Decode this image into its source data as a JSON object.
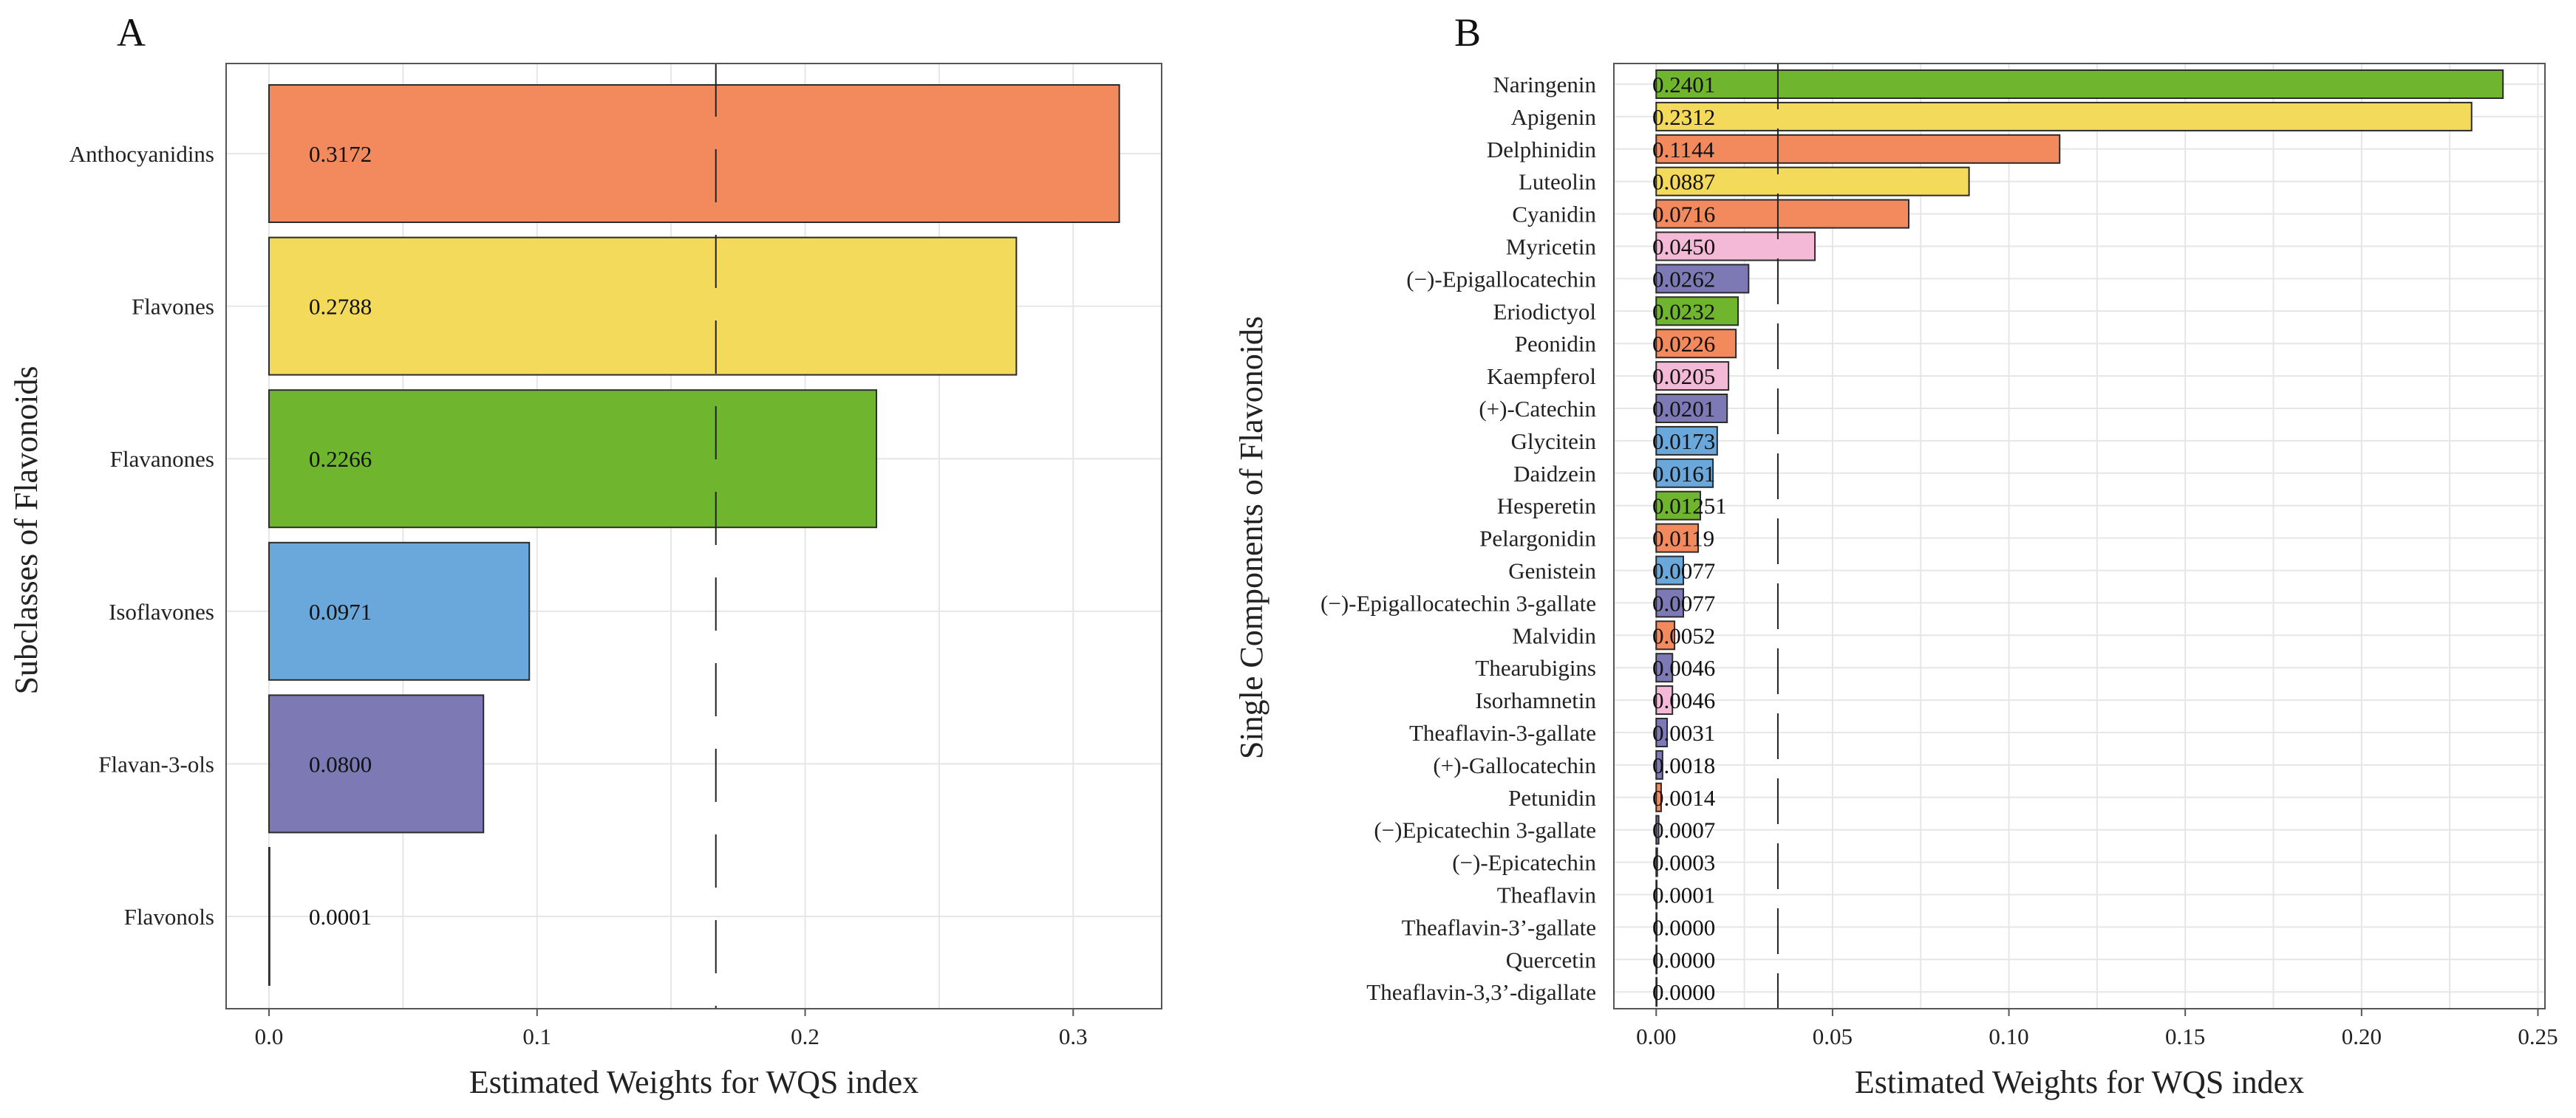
{
  "colors": {
    "Anthocyanidins": "#F28A5E",
    "Flavones": "#F3DA5B",
    "Flavanones": "#6FB52D",
    "Isoflavones": "#6AA8DB",
    "Flavan-3-ols": "#7C79B5",
    "Flavonols": "#F4B9D6"
  },
  "chart_data": [
    {
      "panel": "A",
      "type": "bar",
      "orientation": "horizontal",
      "categories": [
        "Anthocyanidins",
        "Flavones",
        "Flavanones",
        "Isoflavones",
        "Flavan-3-ols",
        "Flavonols"
      ],
      "values": [
        0.3172,
        0.2788,
        0.2266,
        0.0971,
        0.08,
        0.0001
      ],
      "labels": [
        "0.3172",
        "0.2788",
        "0.2266",
        "0.0971",
        "0.0800",
        "0.0001"
      ],
      "groups": [
        "Anthocyanidins",
        "Flavones",
        "Flavanones",
        "Isoflavones",
        "Flavan-3-ols",
        "Flavonols"
      ],
      "xlabel": "Estimated Weights for WQS index",
      "ylabel": "Subclasses of Flavonoids",
      "xlim": [
        -0.016,
        0.333
      ],
      "xticks": [
        0.0,
        0.1,
        0.2,
        0.3
      ],
      "xtick_labels": [
        "0.0",
        "0.1",
        "0.2",
        "0.3"
      ],
      "reference_line": 0.1667,
      "grid": true
    },
    {
      "panel": "B",
      "type": "bar",
      "orientation": "horizontal",
      "categories": [
        "Naringenin",
        "Apigenin",
        "Delphinidin",
        "Luteolin",
        "Cyanidin",
        "Myricetin",
        "(−)-Epigallocatechin",
        "Eriodictyol",
        "Peonidin",
        "Kaempferol",
        "(+)-Catechin",
        "Glycitein",
        "Daidzein",
        "Hesperetin",
        "Pelargonidin",
        "Genistein",
        "(−)-Epigallocatechin 3-gallate",
        "Malvidin",
        "Thearubigins",
        "Isorhamnetin",
        "Theaflavin-3-gallate",
        "(+)-Gallocatechin",
        "Petunidin",
        "(−)Epicatechin 3-gallate",
        "(−)-Epicatechin",
        "Theaflavin",
        "Theaflavin-3’-gallate",
        "Quercetin",
        "Theaflavin-3,3’-digallate"
      ],
      "values": [
        0.2401,
        0.2312,
        0.1144,
        0.0887,
        0.0716,
        0.045,
        0.0262,
        0.0232,
        0.0226,
        0.0205,
        0.0201,
        0.0173,
        0.0161,
        0.01251,
        0.0119,
        0.0077,
        0.0077,
        0.0052,
        0.0046,
        0.0046,
        0.0031,
        0.0018,
        0.0014,
        0.0007,
        0.0003,
        0.0001,
        0.0,
        0.0,
        0.0
      ],
      "labels": [
        "0.2401",
        "0.2312",
        "0.1144",
        "0.0887",
        "0.0716",
        "0.0450",
        "0.0262",
        "0.0232",
        "0.0226",
        "0.0205",
        "0.0201",
        "0.0173",
        "0.0161",
        "0.01251",
        "0.0119",
        "0.0077",
        "0.0077",
        "0.0052",
        "0.0046",
        "0.0046",
        "0.0031",
        "0.0018",
        "0.0014",
        "0.0007",
        "0.0003",
        "0.0001",
        "0.0000",
        "0.0000",
        "0.0000"
      ],
      "groups": [
        "Flavanones",
        "Flavones",
        "Anthocyanidins",
        "Flavones",
        "Anthocyanidins",
        "Flavonols",
        "Flavan-3-ols",
        "Flavanones",
        "Anthocyanidins",
        "Flavonols",
        "Flavan-3-ols",
        "Isoflavones",
        "Isoflavones",
        "Flavanones",
        "Anthocyanidins",
        "Isoflavones",
        "Flavan-3-ols",
        "Anthocyanidins",
        "Flavan-3-ols",
        "Flavonols",
        "Flavan-3-ols",
        "Flavan-3-ols",
        "Anthocyanidins",
        "Flavan-3-ols",
        "Flavan-3-ols",
        "Flavan-3-ols",
        "Flavan-3-ols",
        "Flavonols",
        "Flavan-3-ols"
      ],
      "xlabel": "Estimated Weights for WQS index",
      "ylabel": "Single Components of Flavonoids",
      "xlim": [
        -0.012,
        0.252
      ],
      "xticks": [
        0.0,
        0.05,
        0.1,
        0.15,
        0.2,
        0.25
      ],
      "xtick_labels": [
        "0.00",
        "0.05",
        "0.10",
        "0.15",
        "0.20",
        "0.25"
      ],
      "reference_line": 0.0345,
      "grid": true
    }
  ]
}
